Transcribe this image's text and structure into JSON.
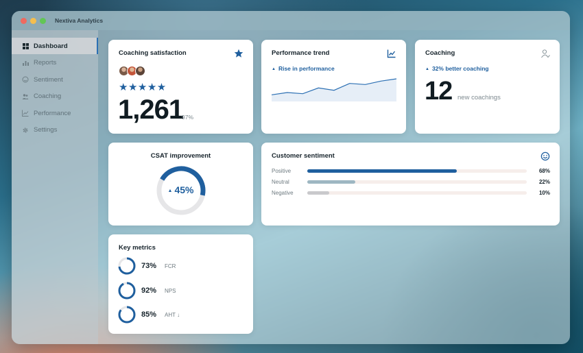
{
  "window": {
    "title": "Nextiva Analytics"
  },
  "sidebar": {
    "items": [
      {
        "label": "Dashboard",
        "icon": "dashboard-icon"
      },
      {
        "label": "Reports",
        "icon": "bar-chart-icon"
      },
      {
        "label": "Sentiment",
        "icon": "smiley-icon"
      },
      {
        "label": "Coaching",
        "icon": "people-icon"
      },
      {
        "label": "Performance",
        "icon": "line-chart-icon"
      },
      {
        "label": "Settings",
        "icon": "gear-icon"
      }
    ]
  },
  "coaching_satisfaction": {
    "title": "Coaching satisfaction",
    "stars": "★★★★★",
    "count": "1,261",
    "percent": "97%"
  },
  "performance_trend": {
    "title": "Performance trend",
    "trend_label": "Rise in performance",
    "chart_data": {
      "type": "area",
      "values": [
        3,
        4,
        3.5,
        6,
        5,
        8,
        7.5,
        9,
        10
      ]
    }
  },
  "coaching": {
    "title": "Coaching",
    "trend_label": "32% better coaching",
    "count": "12",
    "caption": "new coachings"
  },
  "csat": {
    "title": "CSAT improvement",
    "value_label": "45%",
    "value": 45
  },
  "customer_sentiment": {
    "title": "Customer sentiment",
    "rows": [
      {
        "label": "Positive",
        "pct_label": "68%",
        "value": 68,
        "color": "#1f5f9e"
      },
      {
        "label": "Neutral",
        "pct_label": "22%",
        "value": 22,
        "color": "#9eb7c2"
      },
      {
        "label": "Negative",
        "pct_label": "10%",
        "value": 10,
        "color": "#c9c9cc"
      }
    ]
  },
  "key_metrics": {
    "title": "Key metrics",
    "items": [
      {
        "pct_label": "73%",
        "label": "FCR",
        "value": 73
      },
      {
        "pct_label": "92%",
        "label": "NPS",
        "value": 92
      },
      {
        "pct_label": "85%",
        "label": "AHT ↓",
        "value": 85
      }
    ]
  },
  "colors": {
    "accent": "#1f5f9e",
    "track": "#e6e6e8"
  }
}
